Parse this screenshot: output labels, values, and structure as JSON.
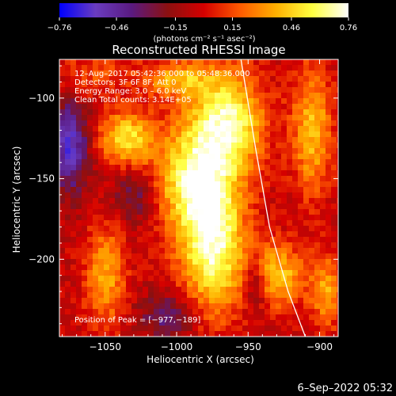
{
  "chart_data": {
    "type": "heatmap",
    "title": "Reconstructed RHESSI Image",
    "xlabel": "Heliocentric X (arcsec)",
    "ylabel": "Heliocentric Y (arcsec)",
    "xlim": [
      -1082,
      -887
    ],
    "ylim": [
      -248,
      -76
    ],
    "xticks": [
      -1050,
      -1000,
      -950,
      -900
    ],
    "xtick_labels": [
      "−1050",
      "−1000",
      "−950",
      "−900"
    ],
    "yticks": [
      -100,
      -150,
      -200
    ],
    "ytick_labels": [
      "−100",
      "−150",
      "−200"
    ],
    "colorbar": {
      "min": -0.76,
      "max": 0.76,
      "ticks": [
        -0.76,
        -0.46,
        -0.15,
        0.15,
        0.46,
        0.76
      ],
      "tick_labels": [
        "−0.76",
        "−0.46",
        "−0.15",
        "0.15",
        "0.46",
        "0.76"
      ],
      "unit_label": "(photons cm⁻² s⁻¹ asec⁻²)"
    },
    "info_lines": [
      "12–Aug–2017 05:42:36.000 to 05:48:36.000",
      "Detectors: 3F 6F 8F, Att 0",
      "Energy Range: 3.0 – 6.0 keV",
      "Clean     Total counts: 3.14E+05"
    ],
    "peak_label": "Position of Peak = [−977,−189]",
    "peak": [
      -977,
      -189
    ],
    "limb_curve": [
      [
        -955,
        -76
      ],
      [
        -945,
        -130
      ],
      [
        -935,
        -180
      ],
      [
        -922,
        -220
      ],
      [
        -910,
        -248
      ]
    ],
    "sources": [
      {
        "x": -975,
        "y": -190,
        "value": 0.74,
        "sx": 16,
        "sy": 30
      },
      {
        "x": -965,
        "y": -115,
        "value": 0.7,
        "sx": 18,
        "sy": 22
      },
      {
        "x": -990,
        "y": -150,
        "value": 0.55,
        "sx": 18,
        "sy": 22
      },
      {
        "x": -1035,
        "y": -125,
        "value": 0.55,
        "sx": 14,
        "sy": 12
      },
      {
        "x": -1050,
        "y": -210,
        "value": 0.4,
        "sx": 10,
        "sy": 22
      },
      {
        "x": -1000,
        "y": -88,
        "value": 0.4,
        "sx": 18,
        "sy": 8
      },
      {
        "x": -930,
        "y": -210,
        "value": 0.48,
        "sx": 14,
        "sy": 14
      },
      {
        "x": -905,
        "y": -120,
        "value": 0.45,
        "sx": 10,
        "sy": 28
      },
      {
        "x": -895,
        "y": -220,
        "value": 0.38,
        "sx": 8,
        "sy": 16
      },
      {
        "x": -1060,
        "y": -85,
        "value": 0.2,
        "sx": 18,
        "sy": 10
      }
    ],
    "background_level": -0.05,
    "cold_regions": [
      {
        "x": -1075,
        "y": -130,
        "value": -0.55,
        "sx": 10,
        "sy": 20
      },
      {
        "x": -1030,
        "y": -160,
        "value": -0.3,
        "sx": 10,
        "sy": 12
      },
      {
        "x": -1005,
        "y": -235,
        "value": -0.35,
        "sx": 14,
        "sy": 10
      },
      {
        "x": -945,
        "y": -215,
        "value": -0.4,
        "sx": 6,
        "sy": 12
      }
    ],
    "colors": {
      "scale": [
        "#0000ff",
        "#6a3cc0",
        "#5a1a80",
        "#8c1010",
        "#d40000",
        "#ff5a00",
        "#ffb000",
        "#ffff40",
        "#ffffff"
      ]
    }
  },
  "footer": {
    "timestamp": "6–Sep–2022 05:32"
  }
}
